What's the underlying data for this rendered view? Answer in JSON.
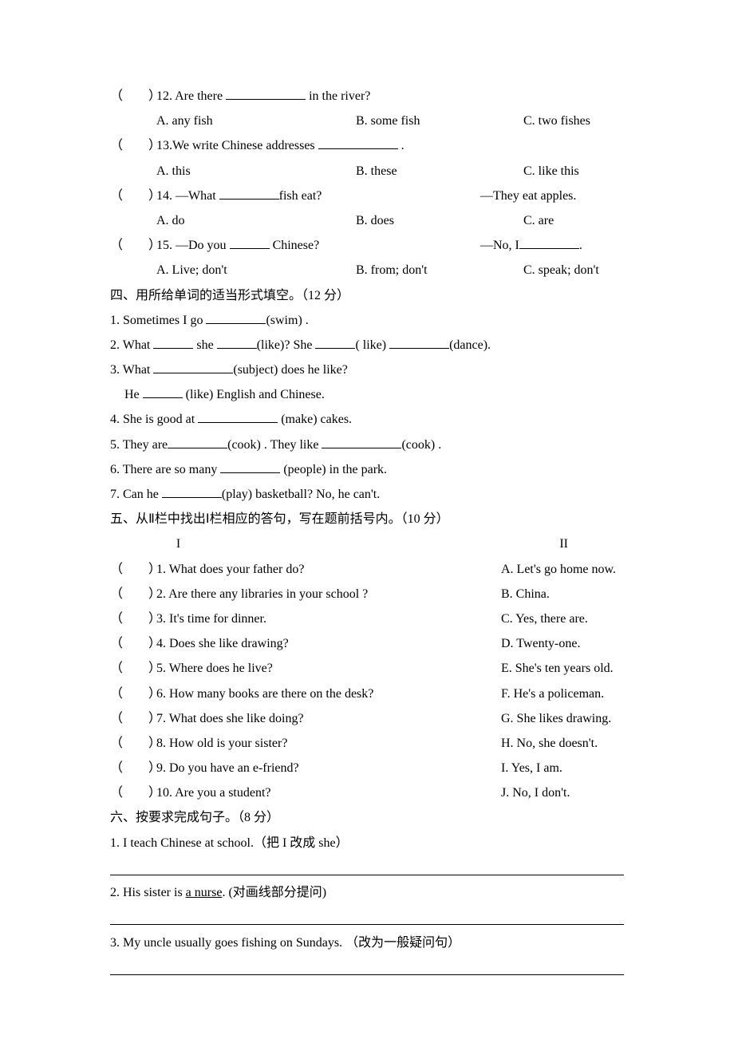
{
  "q12": {
    "bracket": "（　　）",
    "text_pre": "12. Are there ",
    "text_post": " in the river?",
    "a": "A.  any fish",
    "b": "B. some fish",
    "c": "C. two fishes"
  },
  "q13": {
    "bracket": "（　　）",
    "text_pre": "13.We write Chinese addresses ",
    "text_post": " .",
    "a": "A. this",
    "b": "B. these",
    "c": "C. like this"
  },
  "q14": {
    "bracket": "（　　）",
    "text_pre": "14. —What ",
    "text_post": "fish eat?",
    "right": "—They eat apples.",
    "a": "A. do",
    "b": "B. does",
    "c": "C. are"
  },
  "q15": {
    "bracket": "（　　）",
    "text_pre": "15. —Do you ",
    "text_post": " Chinese?",
    "right_pre": "—No, I",
    "right_post": ".",
    "a": "A. Live; don't",
    "b": "B. from; don't",
    "c": "C. speak; don't"
  },
  "section4": {
    "title": "四、用所给单词的适当形式填空。（12 分）",
    "q1_pre": "1. Sometimes I go ",
    "q1_post": "(swim) .",
    "q2_a": "2. What ",
    "q2_b": " she ",
    "q2_c": "(like)? She ",
    "q2_d": "( like) ",
    "q2_e": "(dance).",
    "q3a_pre": "3. What ",
    "q3a_post": "(subject) does he like?",
    "q3b_pre": "He ",
    "q3b_post": " (like) English and Chinese.",
    "q4_pre": "4. She is good at ",
    "q4_post": " (make) cakes.",
    "q5_a": "5. They are",
    "q5_b": "(cook) . They like ",
    "q5_c": "(cook) .",
    "q6_pre": "6. There are so many ",
    "q6_post": " (people) in the park.",
    "q7_pre": "7. Can he ",
    "q7_post": "(play) basketball? No, he can't."
  },
  "section5": {
    "title": "五、从Ⅱ栏中找出Ⅰ栏相应的答句，写在题前括号内。（10 分）",
    "col1": "I",
    "col2": "II",
    "rows": [
      {
        "b": "（　　）",
        "l": "1. What does your father do?",
        "r": "A. Let's go home now."
      },
      {
        "b": "（　　）",
        "l": "2. Are there any libraries in your school ?",
        "r": "B. China."
      },
      {
        "b": "（　　）",
        "l": "3. It's time for dinner.",
        "r": "C. Yes, there are."
      },
      {
        "b": "（　　）",
        "l": "4. Does she like drawing?",
        "r": "D. Twenty-one."
      },
      {
        "b": "（　　）",
        "l": "5. Where does he live?",
        "r": "E. She's ten years old."
      },
      {
        "b": "（　　）",
        "l": "6. How many books are there on the desk?",
        "r": "F. He's a policeman."
      },
      {
        "b": "（　　）",
        "l": "7. What does she like doing?",
        "r": "G. She likes drawing."
      },
      {
        "b": "（　　）",
        "l": "8. How old is your sister?",
        "r": "H. No, she doesn't."
      },
      {
        "b": "（　　）",
        "l": "9. Do you have an e-friend?",
        "r": "I. Yes, I am."
      },
      {
        "b": "（　　）",
        "l": "10. Are you a student?",
        "r": "J. No, I don't."
      }
    ]
  },
  "section6": {
    "title": "六、按要求完成句子。（8 分）",
    "q1": "1. I teach Chinese at school.（把 I 改成 she）",
    "q2_pre": "2. His sister is ",
    "q2_u": "a nurse",
    "q2_post": ". (对画线部分提问)",
    "q3": "3. My uncle usually goes fishing on Sundays.  （改为一般疑问句）"
  }
}
